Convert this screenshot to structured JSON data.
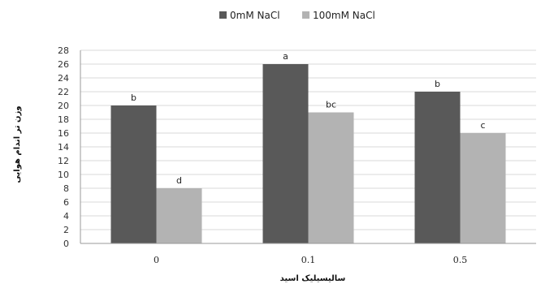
{
  "chart_data": {
    "type": "bar",
    "categories": [
      "0",
      "0.1",
      "0.5"
    ],
    "series": [
      {
        "name": "0mM NaCl",
        "color": "#595959",
        "values": [
          20,
          26,
          22
        ],
        "labels": [
          "b",
          "a",
          "b"
        ]
      },
      {
        "name": "100mM NaCl",
        "color": "#b3b3b3",
        "values": [
          8,
          19,
          16
        ],
        "labels": [
          "d",
          "bc",
          "c"
        ]
      }
    ],
    "ylim": [
      0,
      28
    ],
    "yticks": [
      0,
      2,
      4,
      6,
      8,
      10,
      12,
      14,
      16,
      18,
      20,
      22,
      24,
      26,
      28
    ],
    "xlabel": "سالیسیلیک اسید",
    "ylabel": "وزن تر اندام هوایی",
    "grid": true,
    "legend": "top"
  }
}
